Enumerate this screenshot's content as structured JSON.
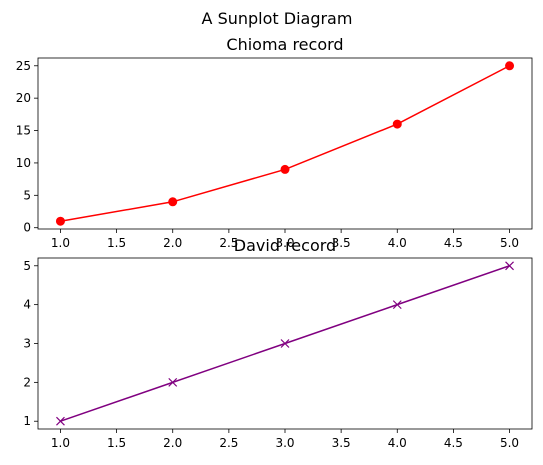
{
  "figure": {
    "suptitle": "A Sunplot Diagram"
  },
  "chart_data": [
    {
      "type": "line",
      "title": "Chioma record",
      "xlabel": "",
      "ylabel": "",
      "x": [
        1,
        2,
        3,
        4,
        5
      ],
      "series": [
        {
          "values": [
            1,
            4,
            9,
            16,
            25
          ],
          "color": "#ff0000",
          "marker": "circle"
        }
      ],
      "xlim": [
        0.8,
        5.2
      ],
      "ylim": [
        -0.2,
        26.2
      ],
      "xticks": [
        1.0,
        1.5,
        2.0,
        2.5,
        3.0,
        3.5,
        4.0,
        4.5,
        5.0
      ],
      "xtick_labels": [
        "1.0",
        "1.5",
        "2.0",
        "2.5",
        "3.0",
        "3.5",
        "4.0",
        "4.5",
        "5.0"
      ],
      "yticks": [
        0,
        5,
        10,
        15,
        20,
        25
      ],
      "ytick_labels": [
        "0",
        "5",
        "10",
        "15",
        "20",
        "25"
      ],
      "grid": false,
      "legend": false
    },
    {
      "type": "line",
      "title": "David record",
      "xlabel": "",
      "ylabel": "",
      "x": [
        1,
        2,
        3,
        4,
        5
      ],
      "series": [
        {
          "values": [
            1,
            2,
            3,
            4,
            5
          ],
          "color": "#800080",
          "marker": "x"
        }
      ],
      "xlim": [
        0.8,
        5.2
      ],
      "ylim": [
        0.8,
        5.2
      ],
      "xticks": [
        1.0,
        1.5,
        2.0,
        2.5,
        3.0,
        3.5,
        4.0,
        4.5,
        5.0
      ],
      "xtick_labels": [
        "1.0",
        "1.5",
        "2.0",
        "2.5",
        "3.0",
        "3.5",
        "4.0",
        "4.5",
        "5.0"
      ],
      "yticks": [
        1,
        2,
        3,
        4,
        5
      ],
      "ytick_labels": [
        "1",
        "2",
        "3",
        "4",
        "5"
      ],
      "grid": false,
      "legend": false
    }
  ]
}
